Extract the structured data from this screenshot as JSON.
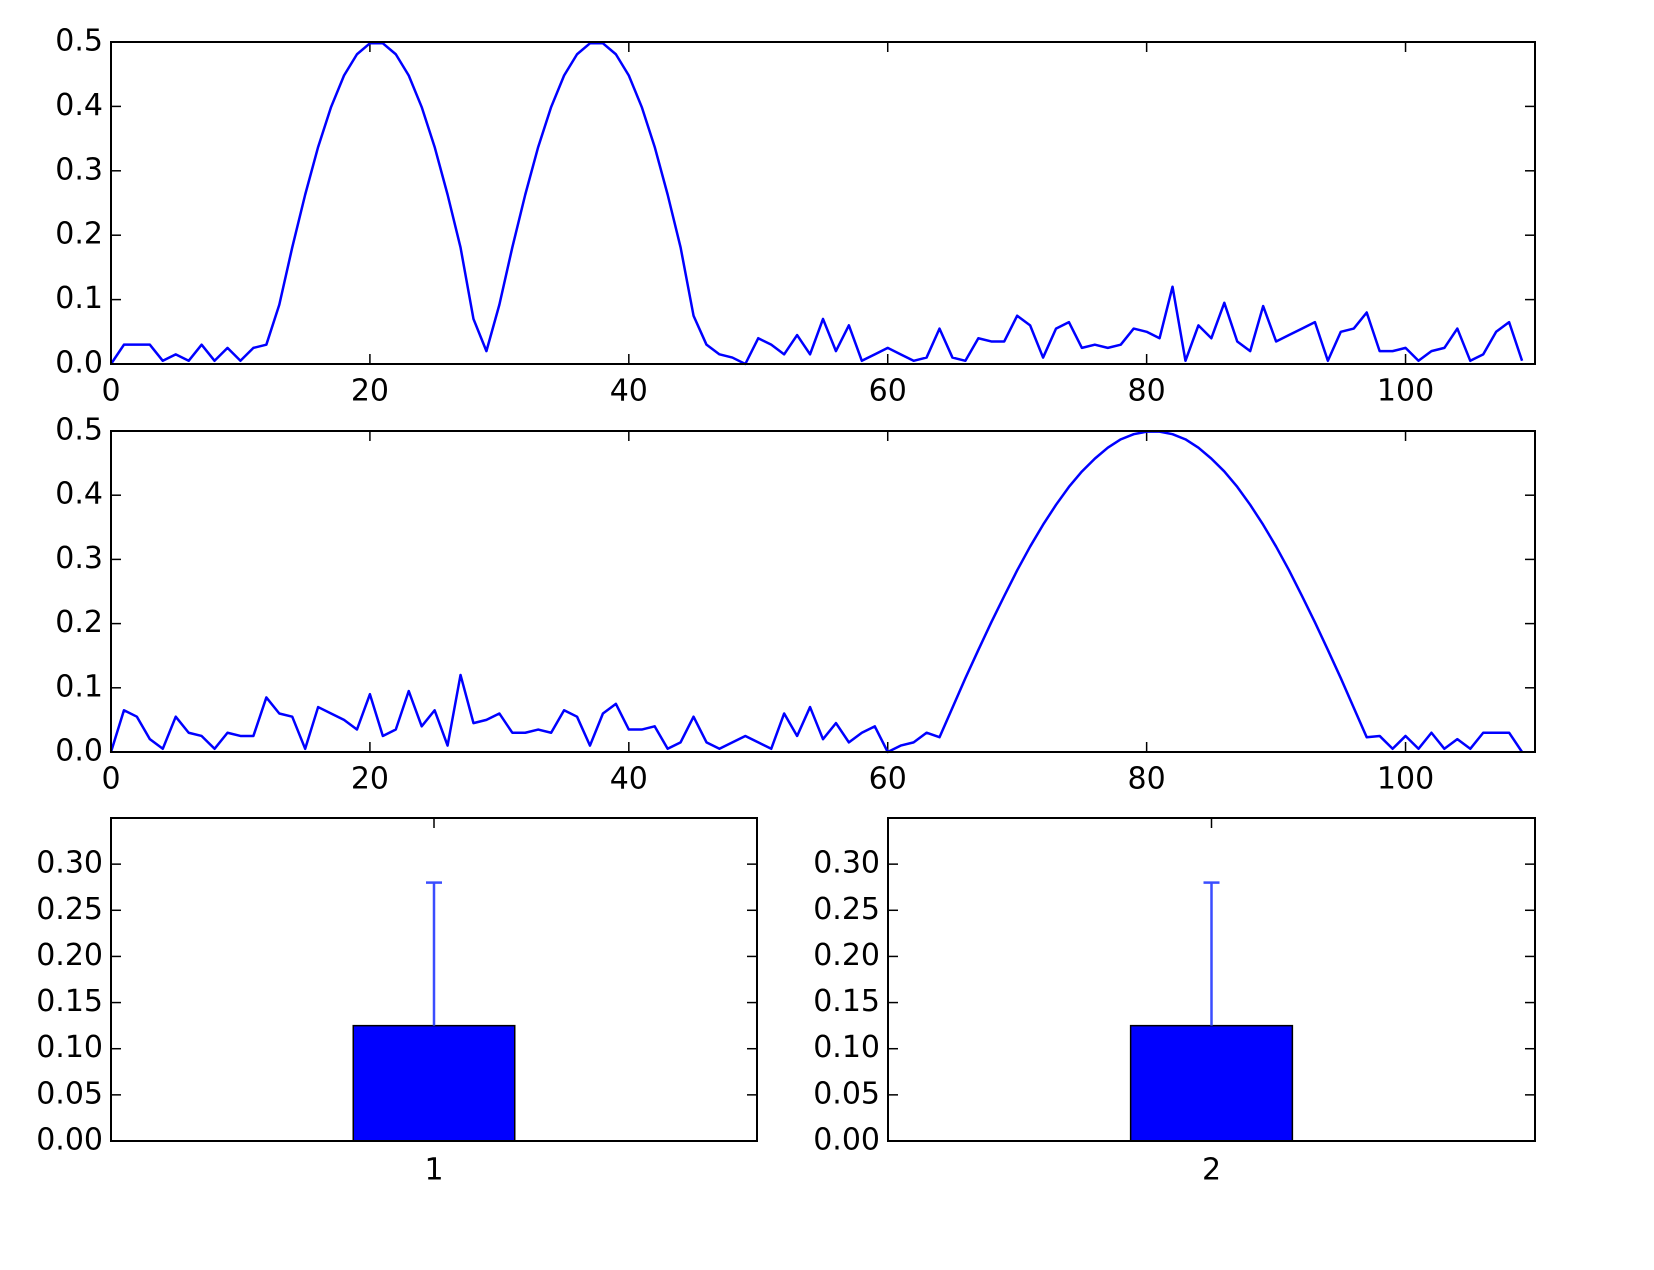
{
  "chart_data": [
    {
      "type": "line",
      "color": "#0000ff",
      "x": [
        0,
        1,
        2,
        3,
        4,
        5,
        6,
        7,
        8,
        9,
        10,
        11,
        12,
        13,
        14,
        15,
        16,
        17,
        18,
        19,
        20,
        21,
        22,
        23,
        24,
        25,
        26,
        27,
        28,
        29,
        30,
        31,
        32,
        33,
        34,
        35,
        36,
        37,
        38,
        39,
        40,
        41,
        42,
        43,
        44,
        45,
        46,
        47,
        48,
        49,
        50,
        51,
        52,
        53,
        54,
        55,
        56,
        57,
        58,
        59,
        60,
        61,
        62,
        63,
        64,
        65,
        66,
        67,
        68,
        69,
        70,
        71,
        72,
        73,
        74,
        75,
        76,
        77,
        78,
        79,
        80,
        81,
        82,
        83,
        84,
        85,
        86,
        87,
        88,
        89,
        90,
        91,
        92,
        93,
        94,
        95,
        96,
        97,
        98,
        99,
        100,
        101,
        102,
        103,
        104,
        105,
        106,
        107,
        108,
        109
      ],
      "values": [
        0,
        0.03,
        0.03,
        0.03,
        0.005,
        0.015,
        0.005,
        0.03,
        0.005,
        0.025,
        0.005,
        0.025,
        0.03,
        0.092,
        0.181,
        0.263,
        0.337,
        0.399,
        0.448,
        0.481,
        0.498,
        0.498,
        0.481,
        0.448,
        0.399,
        0.337,
        0.263,
        0.181,
        0.07,
        0.02,
        0.092,
        0.181,
        0.263,
        0.337,
        0.399,
        0.448,
        0.481,
        0.498,
        0.498,
        0.481,
        0.448,
        0.399,
        0.337,
        0.263,
        0.181,
        0.075,
        0.03,
        0.015,
        0.01,
        0,
        0.04,
        0.03,
        0.015,
        0.045,
        0.015,
        0.07,
        0.02,
        0.06,
        0.005,
        0.015,
        0.025,
        0.015,
        0.005,
        0.01,
        0.055,
        0.01,
        0.005,
        0.04,
        0.035,
        0.035,
        0.075,
        0.06,
        0.01,
        0.055,
        0.065,
        0.025,
        0.03,
        0.025,
        0.03,
        0.055,
        0.05,
        0.04,
        0.12,
        0.005,
        0.06,
        0.04,
        0.095,
        0.035,
        0.02,
        0.09,
        0.035,
        0.045,
        0.055,
        0.065,
        0.005,
        0.05,
        0.055,
        0.08,
        0.02,
        0.02,
        0.025,
        0.005,
        0.02,
        0.025,
        0.055,
        0.005,
        0.015,
        0.05,
        0.065,
        0.005
      ],
      "xlim": [
        0,
        110
      ],
      "xticks": [
        0,
        20,
        40,
        60,
        80,
        100
      ],
      "ylim": [
        0,
        0.5
      ],
      "yticks": [
        {
          "value": 0,
          "label": "0.0"
        },
        0.1,
        0.2,
        0.3,
        0.4,
        0.5
      ]
    },
    {
      "type": "line",
      "color": "#0000ff",
      "x": [
        0,
        1,
        2,
        3,
        4,
        5,
        6,
        7,
        8,
        9,
        10,
        11,
        12,
        13,
        14,
        15,
        16,
        17,
        18,
        19,
        20,
        21,
        22,
        23,
        24,
        25,
        26,
        27,
        28,
        29,
        30,
        31,
        32,
        33,
        34,
        35,
        36,
        37,
        38,
        39,
        40,
        41,
        42,
        43,
        44,
        45,
        46,
        47,
        48,
        49,
        50,
        51,
        52,
        53,
        54,
        55,
        56,
        57,
        58,
        59,
        60,
        61,
        62,
        63,
        64,
        65,
        66,
        67,
        68,
        69,
        70,
        71,
        72,
        73,
        74,
        75,
        76,
        77,
        78,
        79,
        80,
        81,
        82,
        83,
        84,
        85,
        86,
        87,
        88,
        89,
        90,
        91,
        92,
        93,
        94,
        95,
        96,
        97,
        98,
        99,
        100,
        101,
        102,
        103,
        104,
        105,
        106,
        107,
        108,
        109
      ],
      "values": [
        0,
        0.065,
        0.055,
        0.02,
        0.005,
        0.055,
        0.03,
        0.025,
        0.005,
        0.03,
        0.025,
        0.025,
        0.085,
        0.06,
        0.055,
        0.005,
        0.07,
        0.06,
        0.05,
        0.035,
        0.09,
        0.025,
        0.035,
        0.095,
        0.04,
        0.065,
        0.01,
        0.12,
        0.045,
        0.05,
        0.06,
        0.03,
        0.03,
        0.035,
        0.03,
        0.065,
        0.055,
        0.01,
        0.06,
        0.075,
        0.035,
        0.035,
        0.04,
        0.005,
        0.015,
        0.055,
        0.015,
        0.005,
        0.015,
        0.025,
        0.015,
        0.005,
        0.06,
        0.025,
        0.07,
        0.02,
        0.045,
        0.015,
        0.03,
        0.04,
        0,
        0.01,
        0.015,
        0.03,
        0.023,
        0.069,
        0.115,
        0.159,
        0.202,
        0.243,
        0.283,
        0.32,
        0.354,
        0.385,
        0.413,
        0.437,
        0.457,
        0.474,
        0.487,
        0.495,
        0.499,
        0.499,
        0.495,
        0.487,
        0.474,
        0.457,
        0.437,
        0.413,
        0.385,
        0.354,
        0.32,
        0.283,
        0.243,
        0.202,
        0.159,
        0.115,
        0.069,
        0.023,
        0.025,
        0.005,
        0.025,
        0.005,
        0.03,
        0.005,
        0.02,
        0.005,
        0.03,
        0.03,
        0.03,
        0
      ],
      "xlim": [
        0,
        110
      ],
      "xticks": [
        0,
        20,
        40,
        60,
        80,
        100
      ],
      "ylim": [
        0,
        0.5
      ],
      "yticks": [
        {
          "value": 0,
          "label": "0.0"
        },
        0.1,
        0.2,
        0.3,
        0.4,
        0.5
      ]
    },
    {
      "type": "bar",
      "color": "#0000ff",
      "categories": [
        "1"
      ],
      "values": [
        0.125
      ],
      "errors": [
        0.155
      ],
      "ylim": [
        0,
        0.35
      ],
      "yticks": [
        {
          "value": 0,
          "label": "0.00"
        },
        0.05,
        {
          "value": 0.1,
          "label": "0.10"
        },
        0.15,
        {
          "value": 0.2,
          "label": "0.20"
        },
        0.25,
        {
          "value": 0.3,
          "label": "0.30"
        }
      ]
    },
    {
      "type": "bar",
      "color": "#0000ff",
      "categories": [
        "2"
      ],
      "values": [
        0.125
      ],
      "errors": [
        0.155
      ],
      "ylim": [
        0,
        0.35
      ],
      "yticks": [
        {
          "value": 0,
          "label": "0.00"
        },
        0.05,
        {
          "value": 0.1,
          "label": "0.10"
        },
        0.15,
        {
          "value": 0.2,
          "label": "0.20"
        },
        0.25,
        {
          "value": 0.3,
          "label": "0.30"
        }
      ]
    }
  ]
}
